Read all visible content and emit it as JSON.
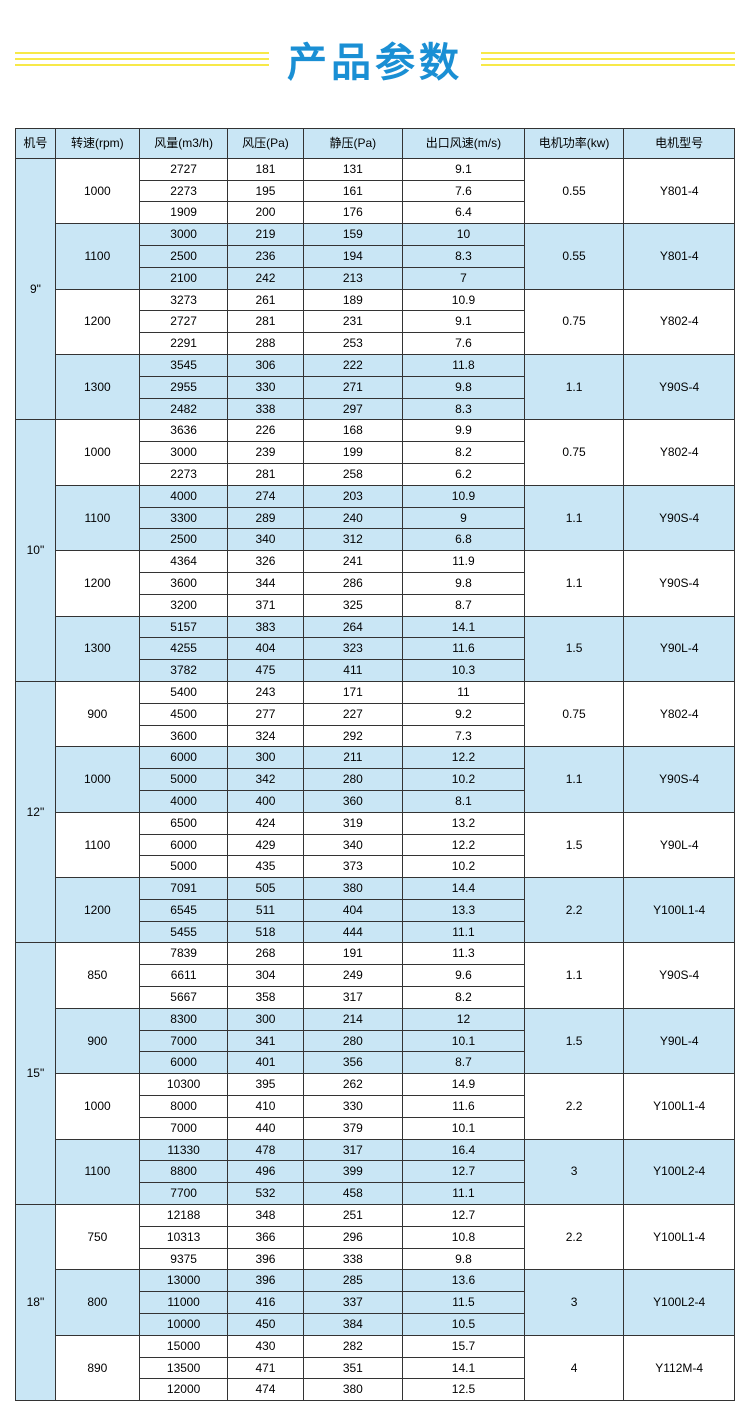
{
  "title": "产品参数",
  "columns": [
    "机号",
    "转速(rpm)",
    "风量(m3/h)",
    "风压(Pa)",
    "静压(Pa)",
    "出口风速(m/s)",
    "电机功率(kw)",
    "电机型号"
  ],
  "colors": {
    "title": "#1a8fd4",
    "title_lines": "#f7e948",
    "header_bg": "#c9e6f5",
    "alt_bg": "#c9e6f5",
    "border": "#333333"
  },
  "machines": [
    {
      "no": "9\"",
      "groups": [
        {
          "rpm": "1000",
          "pwr": "0.55",
          "model": "Y801-4",
          "rows": [
            [
              "2727",
              "181",
              "131",
              "9.1"
            ],
            [
              "2273",
              "195",
              "161",
              "7.6"
            ],
            [
              "1909",
              "200",
              "176",
              "6.4"
            ]
          ]
        },
        {
          "rpm": "1100",
          "pwr": "0.55",
          "model": "Y801-4",
          "rows": [
            [
              "3000",
              "219",
              "159",
              "10"
            ],
            [
              "2500",
              "236",
              "194",
              "8.3"
            ],
            [
              "2100",
              "242",
              "213",
              "7"
            ]
          ]
        },
        {
          "rpm": "1200",
          "pwr": "0.75",
          "model": "Y802-4",
          "rows": [
            [
              "3273",
              "261",
              "189",
              "10.9"
            ],
            [
              "2727",
              "281",
              "231",
              "9.1"
            ],
            [
              "2291",
              "288",
              "253",
              "7.6"
            ]
          ]
        },
        {
          "rpm": "1300",
          "pwr": "1.1",
          "model": "Y90S-4",
          "rows": [
            [
              "3545",
              "306",
              "222",
              "11.8"
            ],
            [
              "2955",
              "330",
              "271",
              "9.8"
            ],
            [
              "2482",
              "338",
              "297",
              "8.3"
            ]
          ]
        }
      ]
    },
    {
      "no": "10\"",
      "groups": [
        {
          "rpm": "1000",
          "pwr": "0.75",
          "model": "Y802-4",
          "rows": [
            [
              "3636",
              "226",
              "168",
              "9.9"
            ],
            [
              "3000",
              "239",
              "199",
              "8.2"
            ],
            [
              "2273",
              "281",
              "258",
              "6.2"
            ]
          ]
        },
        {
          "rpm": "1100",
          "pwr": "1.1",
          "model": "Y90S-4",
          "rows": [
            [
              "4000",
              "274",
              "203",
              "10.9"
            ],
            [
              "3300",
              "289",
              "240",
              "9"
            ],
            [
              "2500",
              "340",
              "312",
              "6.8"
            ]
          ]
        },
        {
          "rpm": "1200",
          "pwr": "1.1",
          "model": "Y90S-4",
          "rows": [
            [
              "4364",
              "326",
              "241",
              "11.9"
            ],
            [
              "3600",
              "344",
              "286",
              "9.8"
            ],
            [
              "3200",
              "371",
              "325",
              "8.7"
            ]
          ]
        },
        {
          "rpm": "1300",
          "pwr": "1.5",
          "model": "Y90L-4",
          "rows": [
            [
              "5157",
              "383",
              "264",
              "14.1"
            ],
            [
              "4255",
              "404",
              "323",
              "11.6"
            ],
            [
              "3782",
              "475",
              "411",
              "10.3"
            ]
          ]
        }
      ]
    },
    {
      "no": "12\"",
      "groups": [
        {
          "rpm": "900",
          "pwr": "0.75",
          "model": "Y802-4",
          "rows": [
            [
              "5400",
              "243",
              "171",
              "11"
            ],
            [
              "4500",
              "277",
              "227",
              "9.2"
            ],
            [
              "3600",
              "324",
              "292",
              "7.3"
            ]
          ]
        },
        {
          "rpm": "1000",
          "pwr": "1.1",
          "model": "Y90S-4",
          "rows": [
            [
              "6000",
              "300",
              "211",
              "12.2"
            ],
            [
              "5000",
              "342",
              "280",
              "10.2"
            ],
            [
              "4000",
              "400",
              "360",
              "8.1"
            ]
          ]
        },
        {
          "rpm": "1100",
          "pwr": "1.5",
          "model": "Y90L-4",
          "rows": [
            [
              "6500",
              "424",
              "319",
              "13.2"
            ],
            [
              "6000",
              "429",
              "340",
              "12.2"
            ],
            [
              "5000",
              "435",
              "373",
              "10.2"
            ]
          ]
        },
        {
          "rpm": "1200",
          "pwr": "2.2",
          "model": "Y100L1-4",
          "rows": [
            [
              "7091",
              "505",
              "380",
              "14.4"
            ],
            [
              "6545",
              "511",
              "404",
              "13.3"
            ],
            [
              "5455",
              "518",
              "444",
              "11.1"
            ]
          ]
        }
      ]
    },
    {
      "no": "15\"",
      "groups": [
        {
          "rpm": "850",
          "pwr": "1.1",
          "model": "Y90S-4",
          "rows": [
            [
              "7839",
              "268",
              "191",
              "11.3"
            ],
            [
              "6611",
              "304",
              "249",
              "9.6"
            ],
            [
              "5667",
              "358",
              "317",
              "8.2"
            ]
          ]
        },
        {
          "rpm": "900",
          "pwr": "1.5",
          "model": "Y90L-4",
          "rows": [
            [
              "8300",
              "300",
              "214",
              "12"
            ],
            [
              "7000",
              "341",
              "280",
              "10.1"
            ],
            [
              "6000",
              "401",
              "356",
              "8.7"
            ]
          ]
        },
        {
          "rpm": "1000",
          "pwr": "2.2",
          "model": "Y100L1-4",
          "rows": [
            [
              "10300",
              "395",
              "262",
              "14.9"
            ],
            [
              "8000",
              "410",
              "330",
              "11.6"
            ],
            [
              "7000",
              "440",
              "379",
              "10.1"
            ]
          ]
        },
        {
          "rpm": "1100",
          "pwr": "3",
          "model": "Y100L2-4",
          "rows": [
            [
              "11330",
              "478",
              "317",
              "16.4"
            ],
            [
              "8800",
              "496",
              "399",
              "12.7"
            ],
            [
              "7700",
              "532",
              "458",
              "11.1"
            ]
          ]
        }
      ]
    },
    {
      "no": "18\"",
      "groups": [
        {
          "rpm": "750",
          "pwr": "2.2",
          "model": "Y100L1-4",
          "rows": [
            [
              "12188",
              "348",
              "251",
              "12.7"
            ],
            [
              "10313",
              "366",
              "296",
              "10.8"
            ],
            [
              "9375",
              "396",
              "338",
              "9.8"
            ]
          ]
        },
        {
          "rpm": "800",
          "pwr": "3",
          "model": "Y100L2-4",
          "rows": [
            [
              "13000",
              "396",
              "285",
              "13.6"
            ],
            [
              "11000",
              "416",
              "337",
              "11.5"
            ],
            [
              "10000",
              "450",
              "384",
              "10.5"
            ]
          ]
        },
        {
          "rpm": "890",
          "pwr": "4",
          "model": "Y112M-4",
          "rows": [
            [
              "15000",
              "430",
              "282",
              "15.7"
            ],
            [
              "13500",
              "471",
              "351",
              "14.1"
            ],
            [
              "12000",
              "474",
              "380",
              "12.5"
            ]
          ]
        }
      ]
    }
  ]
}
